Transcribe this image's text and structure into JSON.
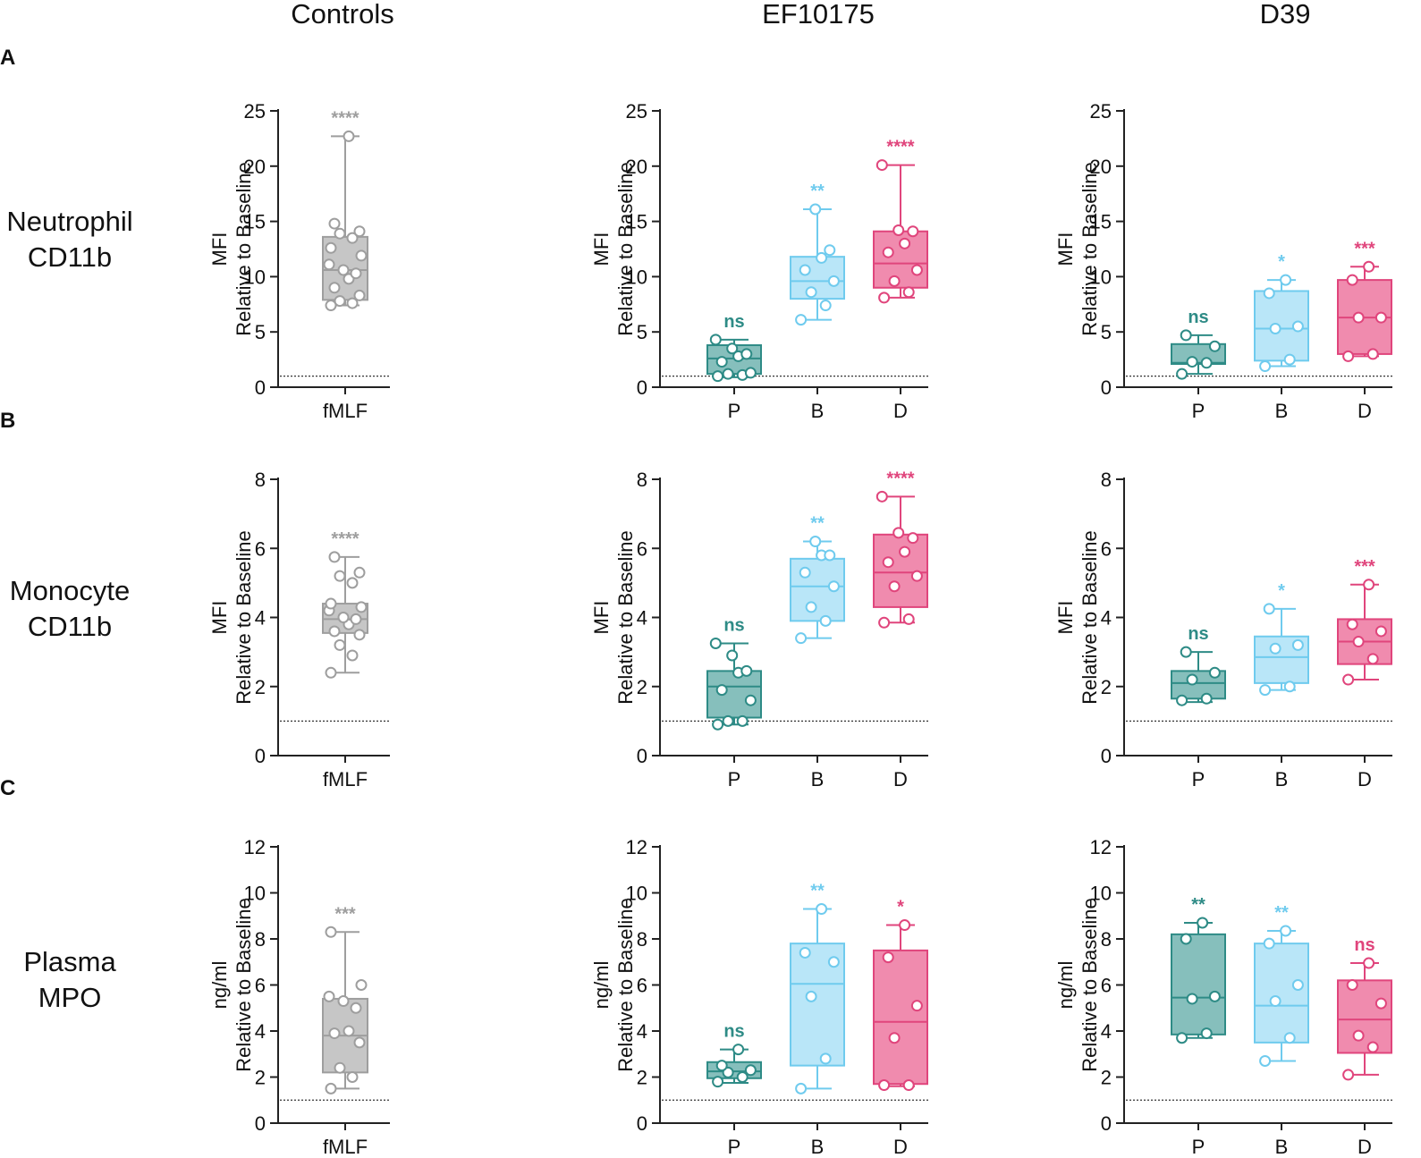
{
  "column_titles": [
    "Controls",
    "EF10175",
    "D39"
  ],
  "panel_letters": [
    "A",
    "B",
    "C"
  ],
  "row_labels": [
    [
      "Neutrophil",
      "CD11b"
    ],
    [
      "Monocyte",
      "CD11b"
    ],
    [
      "Plasma",
      "MPO"
    ]
  ],
  "colors": {
    "grey": "#9e9e9e",
    "grey_fill": "#c6c6c6",
    "teal": "#2e8b86",
    "teal_fill": "#86bfbc",
    "blue": "#6fcbee",
    "blue_fill": "#b9e6f8",
    "pink": "#e0457c",
    "pink_fill": "#f08bae",
    "axis": "#222222"
  },
  "baseline": 1,
  "chart_data": [
    {
      "row": 0,
      "col": 0,
      "type": "box",
      "ylabel": [
        "MFI",
        "Relative to Baseline"
      ],
      "ylim": [
        0,
        25
      ],
      "yticks": [
        0,
        5,
        10,
        15,
        20,
        25
      ],
      "groups": [
        {
          "label": "fMLF",
          "color": "grey",
          "min": 7.4,
          "q1": 7.9,
          "median": 10.6,
          "q3": 13.6,
          "max": 22.7,
          "sig": "****",
          "points": [
            7.4,
            7.6,
            7.8,
            8.3,
            9.0,
            9.8,
            10.3,
            10.6,
            11.1,
            11.9,
            12.6,
            13.5,
            13.9,
            14.1,
            14.8,
            22.7
          ]
        }
      ]
    },
    {
      "row": 0,
      "col": 1,
      "type": "box",
      "ylabel": [
        "MFI",
        "Relative to Baseline"
      ],
      "ylim": [
        0,
        25
      ],
      "yticks": [
        0,
        5,
        10,
        15,
        20,
        25
      ],
      "groups": [
        {
          "label": "P",
          "color": "teal",
          "min": 0.9,
          "q1": 1.2,
          "median": 2.6,
          "q3": 3.8,
          "max": 4.3,
          "sig": "ns",
          "points": [
            1.0,
            1.1,
            1.2,
            1.3,
            2.3,
            2.8,
            3.0,
            3.5,
            4.3
          ]
        },
        {
          "label": "B",
          "color": "blue",
          "min": 6.1,
          "q1": 8.0,
          "median": 9.6,
          "q3": 11.8,
          "max": 16.1,
          "sig": "**",
          "points": [
            6.1,
            7.4,
            8.6,
            9.6,
            10.6,
            11.7,
            12.4,
            16.1
          ]
        },
        {
          "label": "D",
          "color": "pink",
          "min": 8.1,
          "q1": 9.0,
          "median": 11.2,
          "q3": 14.1,
          "max": 20.1,
          "sig": "****",
          "points": [
            8.1,
            8.6,
            9.6,
            10.6,
            12.2,
            13.0,
            14.1,
            14.2,
            20.1
          ]
        }
      ]
    },
    {
      "row": 0,
      "col": 2,
      "type": "box",
      "ylabel": [
        "MFI",
        "Relative to Baseline"
      ],
      "ylim": [
        0,
        25
      ],
      "yticks": [
        0,
        5,
        10,
        15,
        20,
        25
      ],
      "groups": [
        {
          "label": "P",
          "color": "teal",
          "min": 1.2,
          "q1": 2.1,
          "median": 2.2,
          "q3": 3.9,
          "max": 4.7,
          "sig": "ns",
          "points": [
            1.2,
            2.2,
            2.3,
            3.7,
            4.7
          ]
        },
        {
          "label": "B",
          "color": "blue",
          "min": 1.9,
          "q1": 2.4,
          "median": 5.3,
          "q3": 8.7,
          "max": 9.7,
          "sig": "*",
          "points": [
            1.9,
            2.5,
            5.3,
            5.5,
            8.5,
            9.7
          ]
        },
        {
          "label": "D",
          "color": "pink",
          "min": 2.8,
          "q1": 3.0,
          "median": 6.3,
          "q3": 9.7,
          "max": 10.9,
          "sig": "***",
          "points": [
            2.8,
            3.0,
            6.3,
            6.3,
            9.7,
            10.9
          ]
        }
      ]
    },
    {
      "row": 1,
      "col": 0,
      "type": "box",
      "ylabel": [
        "MFI",
        "Relative to Baseline"
      ],
      "ylim": [
        0,
        8
      ],
      "yticks": [
        0,
        2,
        4,
        6,
        8
      ],
      "groups": [
        {
          "label": "fMLF",
          "color": "grey",
          "min": 2.4,
          "q1": 3.55,
          "median": 3.95,
          "q3": 4.4,
          "max": 5.75,
          "sig": "****",
          "points": [
            2.4,
            2.9,
            3.2,
            3.5,
            3.6,
            3.8,
            3.95,
            4.0,
            4.2,
            4.3,
            4.4,
            5.0,
            5.2,
            5.3,
            5.75
          ]
        }
      ]
    },
    {
      "row": 1,
      "col": 1,
      "type": "box",
      "ylabel": [
        "MFI",
        "Relative to Baseline"
      ],
      "ylim": [
        0,
        8
      ],
      "yticks": [
        0,
        2,
        4,
        6,
        8
      ],
      "groups": [
        {
          "label": "P",
          "color": "teal",
          "min": 0.9,
          "q1": 1.1,
          "median": 2.0,
          "q3": 2.45,
          "max": 3.25,
          "sig": "ns",
          "points": [
            0.9,
            1.0,
            1.0,
            1.6,
            1.9,
            2.4,
            2.45,
            2.9,
            3.25
          ]
        },
        {
          "label": "B",
          "color": "blue",
          "min": 3.4,
          "q1": 3.9,
          "median": 4.9,
          "q3": 5.7,
          "max": 6.2,
          "sig": "**",
          "points": [
            3.4,
            3.9,
            4.3,
            4.9,
            5.3,
            5.8,
            5.8,
            6.2
          ]
        },
        {
          "label": "D",
          "color": "pink",
          "min": 3.85,
          "q1": 4.3,
          "median": 5.3,
          "q3": 6.4,
          "max": 7.5,
          "sig": "****",
          "points": [
            3.85,
            3.95,
            4.9,
            5.2,
            5.6,
            5.9,
            6.3,
            6.45,
            7.5
          ]
        }
      ]
    },
    {
      "row": 1,
      "col": 2,
      "type": "box",
      "ylabel": [
        "MFI",
        "Relative to Baseline"
      ],
      "ylim": [
        0,
        8
      ],
      "yticks": [
        0,
        2,
        4,
        6,
        8
      ],
      "groups": [
        {
          "label": "P",
          "color": "teal",
          "min": 1.55,
          "q1": 1.65,
          "median": 2.1,
          "q3": 2.45,
          "max": 3.0,
          "sig": "ns",
          "points": [
            1.6,
            1.65,
            2.2,
            2.4,
            3.0
          ]
        },
        {
          "label": "B",
          "color": "blue",
          "min": 1.9,
          "q1": 2.1,
          "median": 2.85,
          "q3": 3.45,
          "max": 4.25,
          "sig": "*",
          "points": [
            1.9,
            2.0,
            3.1,
            3.2,
            4.25
          ]
        },
        {
          "label": "D",
          "color": "pink",
          "min": 2.2,
          "q1": 2.65,
          "median": 3.3,
          "q3": 3.95,
          "max": 4.95,
          "sig": "***",
          "points": [
            2.2,
            2.8,
            3.3,
            3.6,
            3.8,
            4.95
          ]
        }
      ]
    },
    {
      "row": 2,
      "col": 0,
      "type": "box",
      "ylabel": [
        "ng/ml",
        "Relative to Baseline"
      ],
      "ylim": [
        0,
        12
      ],
      "yticks": [
        0,
        2,
        4,
        6,
        8,
        10,
        12
      ],
      "groups": [
        {
          "label": "fMLF",
          "color": "grey",
          "min": 1.5,
          "q1": 2.2,
          "median": 3.8,
          "q3": 5.4,
          "max": 8.3,
          "sig": "***",
          "points": [
            1.5,
            2.0,
            2.4,
            3.5,
            3.9,
            4.0,
            5.0,
            5.3,
            5.5,
            6.0,
            8.3
          ]
        }
      ]
    },
    {
      "row": 2,
      "col": 1,
      "type": "box",
      "ylabel": [
        "ng/ml",
        "Relative to Baseline"
      ],
      "ylim": [
        0,
        12
      ],
      "yticks": [
        0,
        2,
        4,
        6,
        8,
        10,
        12
      ],
      "groups": [
        {
          "label": "P",
          "color": "teal",
          "min": 1.75,
          "q1": 1.95,
          "median": 2.25,
          "q3": 2.65,
          "max": 3.2,
          "sig": "ns",
          "points": [
            1.8,
            2.0,
            2.2,
            2.3,
            2.5,
            3.2
          ]
        },
        {
          "label": "B",
          "color": "blue",
          "min": 1.5,
          "q1": 2.5,
          "median": 6.05,
          "q3": 7.8,
          "max": 9.3,
          "sig": "**",
          "points": [
            1.5,
            2.8,
            5.5,
            7.0,
            7.4,
            9.3
          ]
        },
        {
          "label": "D",
          "color": "pink",
          "min": 1.6,
          "q1": 1.7,
          "median": 4.4,
          "q3": 7.5,
          "max": 8.6,
          "sig": "*",
          "points": [
            1.65,
            1.65,
            3.7,
            5.1,
            7.2,
            8.6
          ]
        }
      ]
    },
    {
      "row": 2,
      "col": 2,
      "type": "box",
      "ylabel": [
        "ng/ml",
        "Relative to Baseline"
      ],
      "ylim": [
        0,
        12
      ],
      "yticks": [
        0,
        2,
        4,
        6,
        8,
        10,
        12
      ],
      "groups": [
        {
          "label": "P",
          "color": "teal",
          "min": 3.7,
          "q1": 3.85,
          "median": 5.45,
          "q3": 8.2,
          "max": 8.7,
          "sig": "**",
          "points": [
            3.7,
            3.9,
            5.4,
            5.5,
            8.0,
            8.7
          ]
        },
        {
          "label": "B",
          "color": "blue",
          "min": 2.7,
          "q1": 3.5,
          "median": 5.1,
          "q3": 7.8,
          "max": 8.35,
          "sig": "**",
          "points": [
            2.7,
            3.7,
            5.3,
            6.0,
            7.8,
            8.35
          ]
        },
        {
          "label": "D",
          "color": "pink",
          "min": 2.1,
          "q1": 3.05,
          "median": 4.5,
          "q3": 6.2,
          "max": 6.95,
          "sig": "ns",
          "points": [
            2.1,
            3.3,
            3.8,
            5.2,
            6.0,
            6.95
          ]
        }
      ]
    }
  ]
}
